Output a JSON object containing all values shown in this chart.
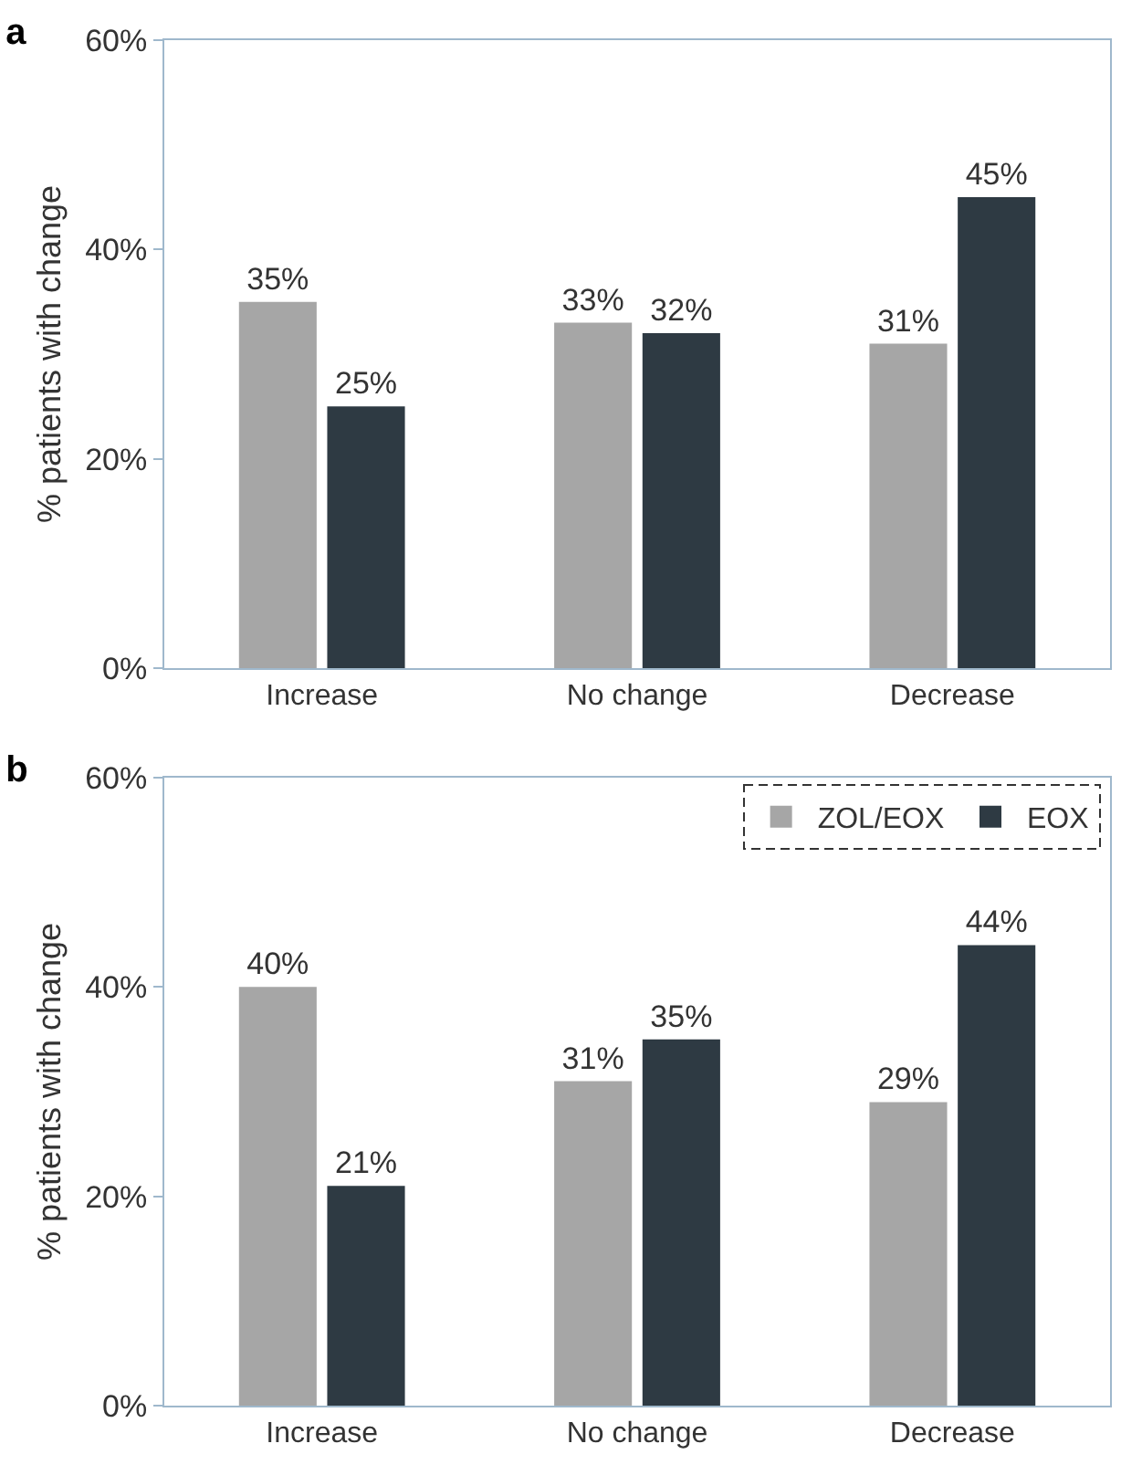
{
  "chart_data": [
    {
      "type": "bar",
      "title": "a",
      "ylabel": "% patients with change",
      "categories": [
        "Increase",
        "No change",
        "Decrease"
      ],
      "series": [
        {
          "color": "#a6a6a6",
          "values": [
            35,
            33,
            31
          ]
        },
        {
          "color": "#2e3a43",
          "values": [
            25,
            32,
            45
          ]
        }
      ],
      "ylim": [
        0,
        60
      ],
      "yticks": [
        {
          "value": 0,
          "label": "0%"
        },
        {
          "value": 20,
          "label": "20%"
        },
        {
          "value": 40,
          "label": "40%"
        },
        {
          "value": 60,
          "label": "60%"
        }
      ],
      "value_labels": [
        [
          "35%",
          "33%",
          "31%"
        ],
        [
          "25%",
          "32%",
          "45%"
        ]
      ],
      "grid": false,
      "legend": false
    },
    {
      "type": "bar",
      "title": "b",
      "ylabel": "% patients with change",
      "categories": [
        "Increase",
        "No change",
        "Decrease"
      ],
      "series": [
        {
          "name": "ZOL/EOX",
          "color": "#a6a6a6",
          "values": [
            40,
            31,
            29
          ]
        },
        {
          "name": "EOX",
          "color": "#2e3a43",
          "values": [
            21,
            35,
            44
          ]
        }
      ],
      "ylim": [
        0,
        60
      ],
      "yticks": [
        {
          "value": 0,
          "label": "0%"
        },
        {
          "value": 20,
          "label": "20%"
        },
        {
          "value": 40,
          "label": "40%"
        },
        {
          "value": 60,
          "label": "60%"
        }
      ],
      "value_labels": [
        [
          "40%",
          "31%",
          "29%"
        ],
        [
          "21%",
          "35%",
          "44%"
        ]
      ],
      "grid": false,
      "legend": "top right"
    }
  ]
}
